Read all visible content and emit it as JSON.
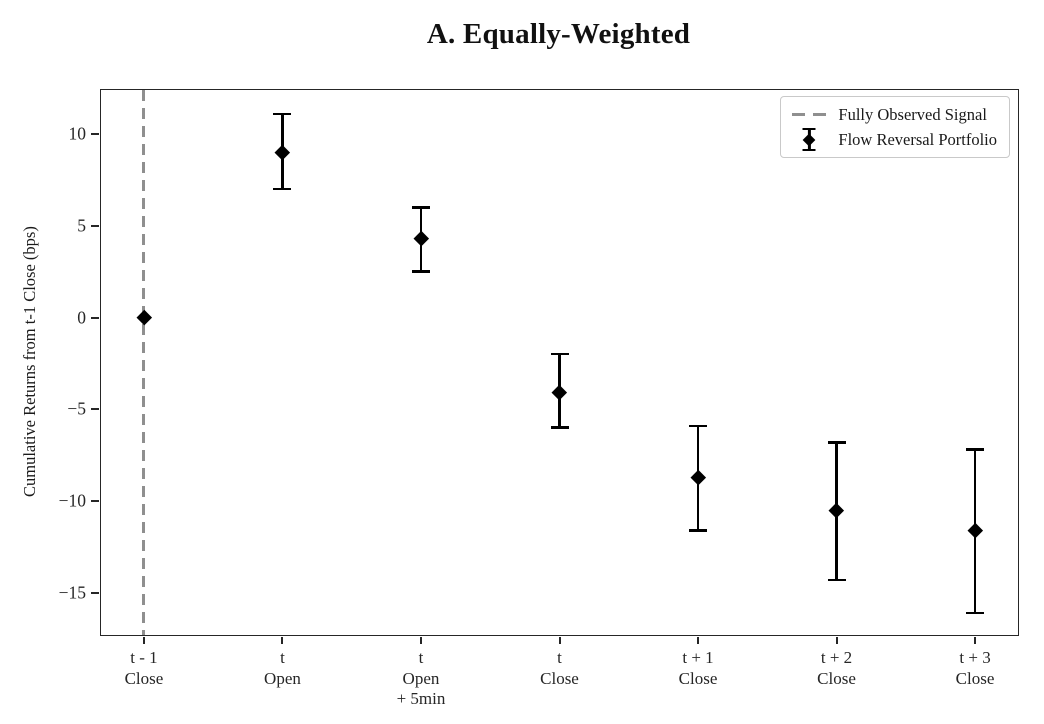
{
  "chart_data": {
    "type": "scatter",
    "variant": "errorbar-point-plot",
    "title": "A. Equally-Weighted",
    "xlabel": "",
    "ylabel": "Cumulative Returns from t-1 Close (bps)",
    "categories": [
      "t - 1 Close",
      "t Open",
      "t Open + 5min",
      "t Close",
      "t + 1 Close",
      "t + 2 Close",
      "t + 3 Close"
    ],
    "x_tick_lines": [
      [
        "t - 1",
        "Close"
      ],
      [
        "t",
        "Open"
      ],
      [
        "t",
        "Open",
        "+ 5min"
      ],
      [
        "t",
        "Close"
      ],
      [
        "t + 1",
        "Close"
      ],
      [
        "t + 2",
        "Close"
      ],
      [
        "t + 3",
        "Close"
      ]
    ],
    "series": [
      {
        "name": "Flow Reversal Portfolio",
        "marker": "diamond",
        "color": "#000000",
        "values": [
          0.0,
          9.0,
          4.3,
          -4.1,
          -8.7,
          -10.5,
          -11.6
        ],
        "ci_low": [
          0.0,
          7.0,
          2.5,
          -6.0,
          -11.6,
          -14.3,
          -16.1
        ],
        "ci_high": [
          0.0,
          11.1,
          6.0,
          -2.0,
          -5.9,
          -6.8,
          -7.2
        ]
      }
    ],
    "vline": {
      "at_category": "t - 1 Close",
      "category_index": 0,
      "name": "Fully Observed Signal",
      "style": "dashed",
      "color": "#8f8f8f"
    },
    "y_ticks": [
      10,
      5,
      0,
      -5,
      -10,
      -15
    ],
    "y_tick_labels": [
      "10",
      "5",
      "0",
      "−5",
      "−10",
      "−15"
    ],
    "ylim": [
      -17.3,
      12.4
    ],
    "x_edge_pad": 0.31,
    "grid": false,
    "legend_position": "upper-right",
    "legend": [
      {
        "label": "Fully Observed Signal",
        "marker": "dashed-line",
        "color": "#8f8f8f"
      },
      {
        "label": "Flow Reversal Portfolio",
        "marker": "errorbar-diamond",
        "color": "#000000"
      }
    ],
    "axis_color": "#262626",
    "text_color": "#1a1a1a"
  }
}
